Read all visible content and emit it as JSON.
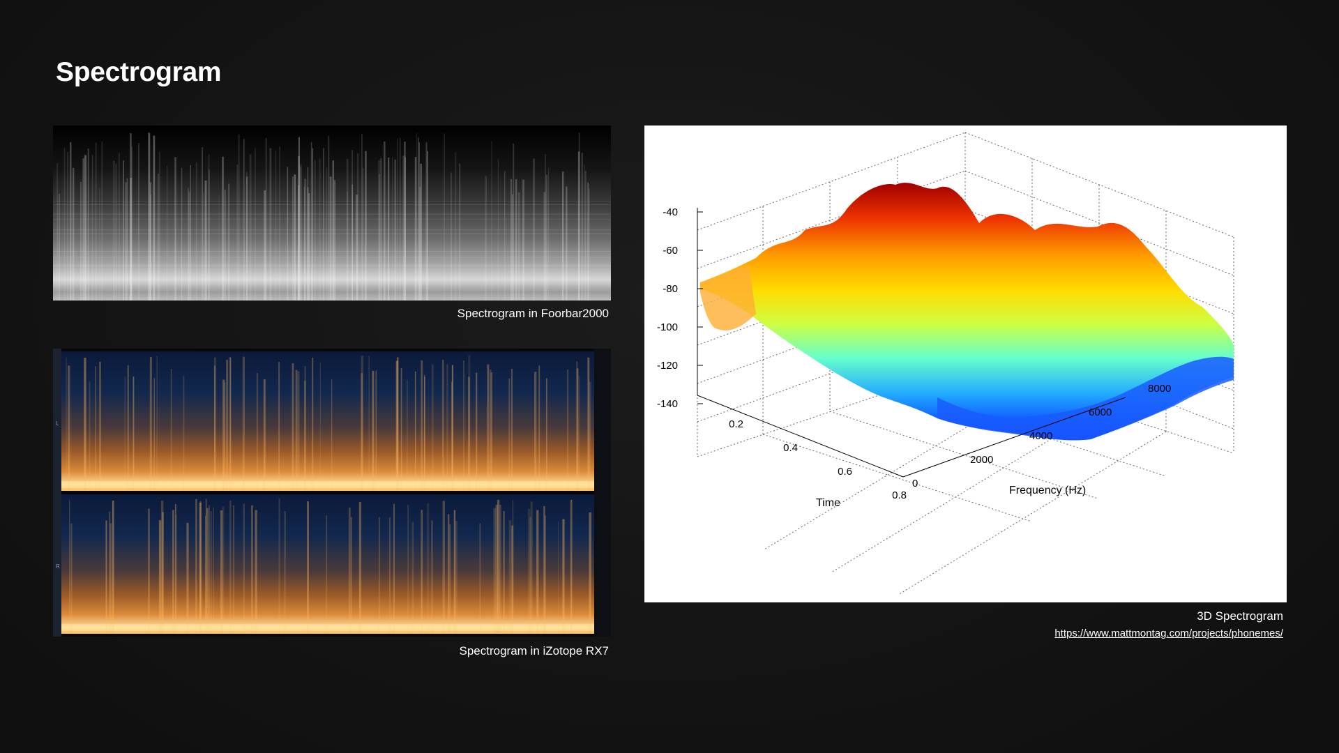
{
  "slide": {
    "title": "Spectrogram"
  },
  "panels": {
    "foobar": {
      "caption": "Spectrogram in Foorbar2000"
    },
    "izotope": {
      "caption": "Spectrogram in iZotope RX7",
      "channel_labels": [
        "L",
        "R"
      ]
    },
    "spectrogram3d": {
      "caption": "3D Spectrogram",
      "link": "https://www.mattmontag.com/projects/phonemes/"
    }
  },
  "chart_data": {
    "type": "surface",
    "z_ticks": [
      "-40",
      "-60",
      "-80",
      "-100",
      "-120",
      "-140"
    ],
    "time_ticks": [
      "0.2",
      "0.4",
      "0.6",
      "0.8"
    ],
    "freq_ticks": [
      "0",
      "2000",
      "4000",
      "6000",
      "8000"
    ],
    "xlabel": "Time",
    "ylabel": "Frequency (Hz)",
    "zlim": [
      -150,
      -30
    ],
    "time_range": [
      0,
      0.9
    ],
    "freq_range": [
      0,
      8000
    ],
    "colormap": "jet",
    "grid": true
  }
}
